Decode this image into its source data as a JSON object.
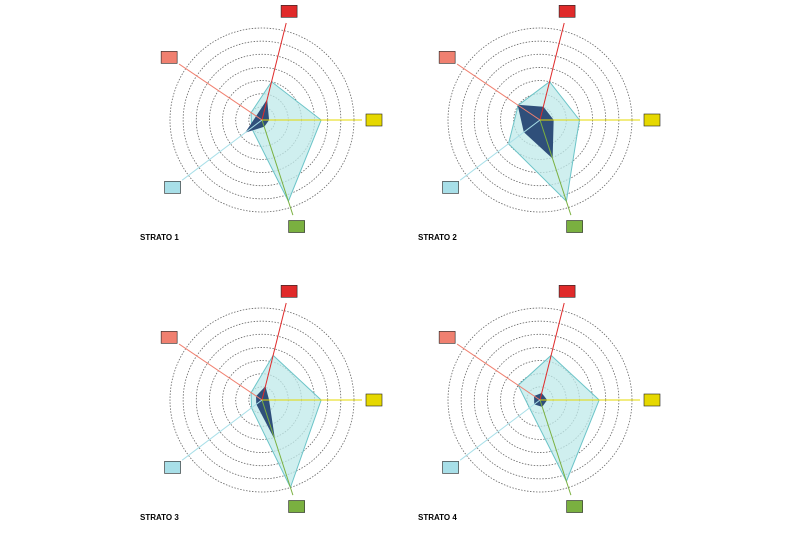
{
  "chart_data": [
    {
      "type": "radar",
      "title": "STRATO 1",
      "categories": [
        null,
        null,
        null,
        null,
        null
      ],
      "axis_colors": [
        "#e02a2a",
        "#e6d800",
        "#7ab040",
        "#a8dfe8",
        "#f08070"
      ],
      "ylim": [
        0,
        7
      ],
      "yticks": [
        1,
        2,
        3,
        4,
        5,
        6,
        7
      ],
      "grid": true,
      "series": [
        {
          "color": "#bfe9ea",
          "values": [
            3,
            4.5,
            6.5,
            1,
            1
          ]
        },
        {
          "color": "#2f4f7a",
          "values": [
            1.5,
            0.5,
            0.5,
            1.5,
            0.5
          ]
        }
      ]
    },
    {
      "type": "radar",
      "title": "STRATO 2",
      "categories": [
        null,
        null,
        null,
        null,
        null
      ],
      "axis_colors": [
        "#e02a2a",
        "#e6d800",
        "#7ab040",
        "#a8dfe8",
        "#f08070"
      ],
      "ylim": [
        0,
        7
      ],
      "yticks": [
        1,
        2,
        3,
        4,
        5,
        6,
        7
      ],
      "grid": true,
      "series": [
        {
          "color": "#bfe9ea",
          "values": [
            3,
            3,
            6.5,
            3,
            2
          ]
        },
        {
          "color": "#2f4f7a",
          "values": [
            1,
            1,
            3,
            1.5,
            2
          ]
        }
      ]
    },
    {
      "type": "radar",
      "title": "STRATO 3",
      "categories": [
        null,
        null,
        null,
        null,
        null
      ],
      "axis_colors": [
        "#e02a2a",
        "#e6d800",
        "#7ab040",
        "#a8dfe8",
        "#f08070"
      ],
      "ylim": [
        0,
        7
      ],
      "yticks": [
        1,
        2,
        3,
        4,
        5,
        6,
        7
      ],
      "grid": true,
      "series": [
        {
          "color": "#bfe9ea",
          "values": [
            3.5,
            4.5,
            7,
            1,
            1
          ]
        },
        {
          "color": "#2f4f7a",
          "values": [
            1,
            0.5,
            3,
            0.5,
            0.5
          ]
        }
      ]
    },
    {
      "type": "radar",
      "title": "STRATO 4",
      "categories": [
        null,
        null,
        null,
        null,
        null
      ],
      "axis_colors": [
        "#e02a2a",
        "#e6d800",
        "#7ab040",
        "#a8dfe8",
        "#f08070"
      ],
      "ylim": [
        0,
        7
      ],
      "yticks": [
        1,
        2,
        3,
        4,
        5,
        6,
        7
      ],
      "grid": true,
      "series": [
        {
          "color": "#bfe9ea",
          "values": [
            3.5,
            4.5,
            6.5,
            1,
            2
          ]
        },
        {
          "color": "#2f4f7a",
          "values": [
            0.5,
            0.5,
            0.5,
            0.5,
            0.5
          ]
        }
      ]
    }
  ]
}
